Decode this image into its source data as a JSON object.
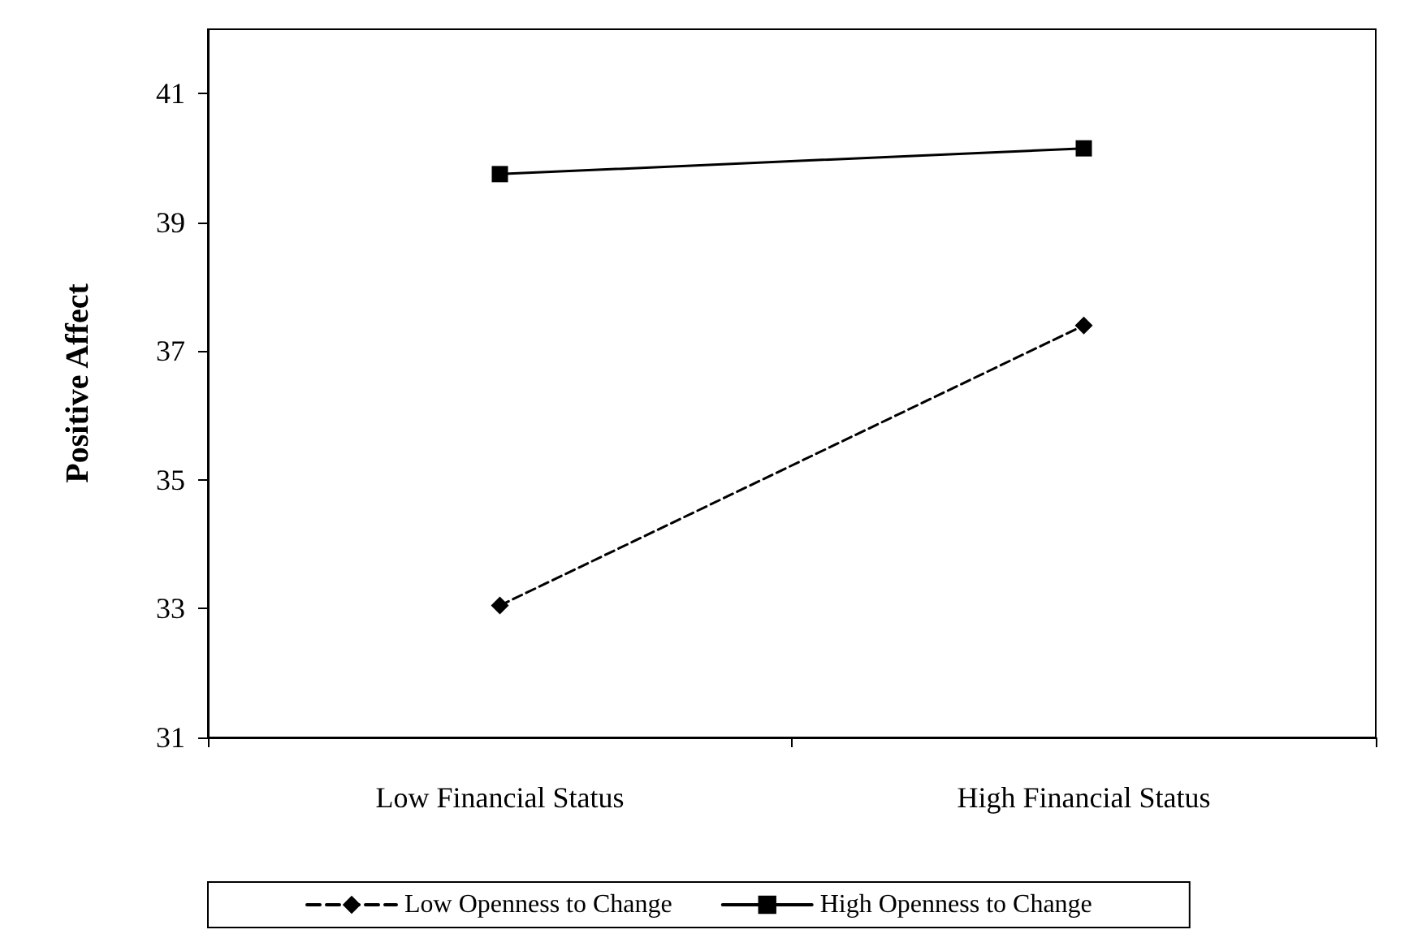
{
  "chart_data": {
    "type": "line",
    "ylabel": "Positive Affect",
    "categories": [
      "Low Financial Status",
      "High Financial Status"
    ],
    "series": [
      {
        "name": "Low Openness to Change",
        "color": "#000000",
        "values": [
          33.05,
          37.4
        ],
        "marker": "diamond",
        "line_style": "dashed"
      },
      {
        "name": "High Openness to Change",
        "color": "#000000",
        "values": [
          39.75,
          40.15
        ],
        "marker": "square",
        "line_style": "solid"
      }
    ],
    "ylim": [
      31,
      42
    ],
    "yticks": [
      31,
      33,
      35,
      37,
      39,
      41
    ],
    "grid": false,
    "legend": "bottom"
  }
}
